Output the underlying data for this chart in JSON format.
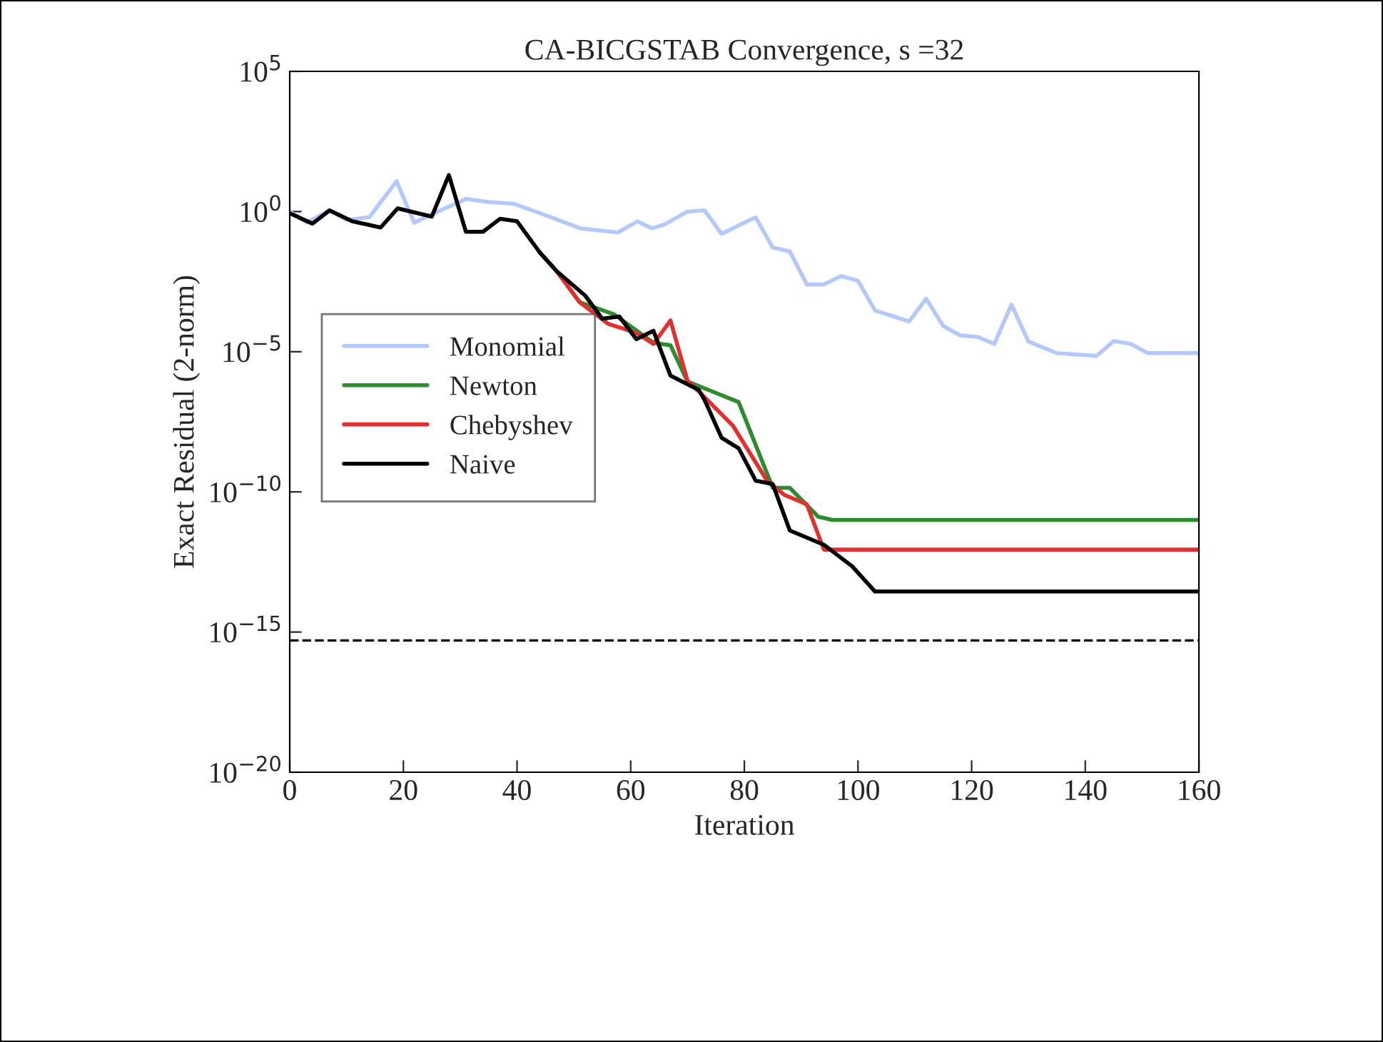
{
  "chart_data": {
    "type": "line",
    "title": "CA-BICGSTAB Convergence, s =32",
    "xlabel": "Iteration",
    "ylabel": "Exact Residual (2-norm)",
    "log": true,
    "xlim": [
      0,
      160
    ],
    "xticks": [
      0,
      20,
      40,
      60,
      80,
      100,
      120,
      140,
      160
    ],
    "ylim": [
      1e-20,
      100000.0
    ],
    "yticks": [
      {
        "value": 1e-20,
        "label": "10$^{−20}$"
      },
      {
        "value": 1e-15,
        "label": "10$^{−15}$"
      },
      {
        "value": 1e-10,
        "label": "10$^{−10}$"
      },
      {
        "value": 1e-05,
        "label": "10$^{−5}$"
      },
      {
        "value": 1,
        "label": "10$^{0}$"
      },
      {
        "value": 100000.0,
        "label": "10$^{5}$"
      }
    ],
    "grid": false,
    "legend": "left",
    "line_style": "solid",
    "marker": "none",
    "ref_lines": [
      {
        "axis": "y",
        "value": 5e-16,
        "color": "#000000",
        "line_style": "dashed"
      }
    ],
    "series": [
      {
        "name": "Monomial",
        "color": "#b4c8fa",
        "x": [
          0,
          3,
          7,
          10,
          14,
          18.8,
          21.9,
          25,
          31,
          35,
          39.4,
          44.5,
          51.2,
          57.8,
          61.2,
          63.7,
          66,
          70,
          73,
          76,
          79,
          82,
          85,
          88,
          91,
          94,
          97,
          100,
          103,
          109,
          112,
          115,
          118,
          121,
          124,
          127,
          130,
          135,
          142,
          145,
          148,
          151,
          160
        ],
        "values": [
          1,
          0.4,
          1.1,
          0.5,
          0.63,
          12,
          0.4,
          0.8,
          2.8,
          2.2,
          1.9,
          0.81,
          0.25,
          0.18,
          0.45,
          0.25,
          0.35,
          1,
          1.1,
          0.16,
          0.32,
          0.62,
          0.052,
          0.038,
          0.0025,
          0.0025,
          0.005,
          0.0034,
          0.0003,
          0.00012,
          0.00078,
          8.3e-05,
          3.8e-05,
          3.4e-05,
          1.9e-05,
          0.00048,
          2.3e-05,
          8.9e-06,
          7.1e-06,
          2.4e-05,
          1.9e-05,
          8.9e-06,
          8.9e-06
        ]
      },
      {
        "name": "Newton",
        "color": "#2e8b2e",
        "x": [
          44,
          47,
          51,
          57,
          64,
          67,
          70,
          79,
          85,
          88,
          93,
          95.5,
          160
        ],
        "values": [
          0.035,
          0.0074,
          0.00059,
          0.00022,
          2.1e-05,
          1.7e-05,
          8.7e-07,
          1.6e-07,
          1.4e-10,
          1.4e-10,
          1.3e-11,
          1e-11,
          1e-11
        ]
      },
      {
        "name": "Chebyshev",
        "color": "#e03030",
        "x": [
          44,
          47,
          51,
          56,
          61,
          64,
          67,
          70,
          73,
          78,
          84,
          87,
          91,
          94,
          160
        ],
        "values": [
          0.035,
          0.0074,
          0.00059,
          0.0001,
          4.7e-05,
          1.9e-05,
          0.00013,
          9.3e-07,
          2.4e-07,
          2.3e-08,
          2.5e-10,
          7.9e-11,
          3.6e-11,
          8.7e-13,
          8.7e-13
        ]
      },
      {
        "name": "Naive",
        "color": "#000000",
        "x": [
          0,
          4,
          7,
          11,
          16,
          19,
          25,
          28,
          31,
          34,
          37,
          40,
          44,
          47,
          52,
          55,
          58,
          61,
          64,
          67,
          72,
          73,
          76,
          79,
          82,
          85,
          88,
          94,
          99,
          103,
          160
        ],
        "values": [
          0.87,
          0.37,
          1.1,
          0.45,
          0.27,
          1.3,
          0.66,
          20,
          0.19,
          0.19,
          0.55,
          0.45,
          0.035,
          0.0074,
          0.001,
          0.00015,
          0.00018,
          2.8e-05,
          5.6e-05,
          1.4e-06,
          4.3e-07,
          1.9e-07,
          8.5e-09,
          3.6e-09,
          2.5e-10,
          1.9e-10,
          4.2e-12,
          1.3e-12,
          2.2e-13,
          2.8e-14,
          2.8e-14
        ]
      }
    ]
  }
}
